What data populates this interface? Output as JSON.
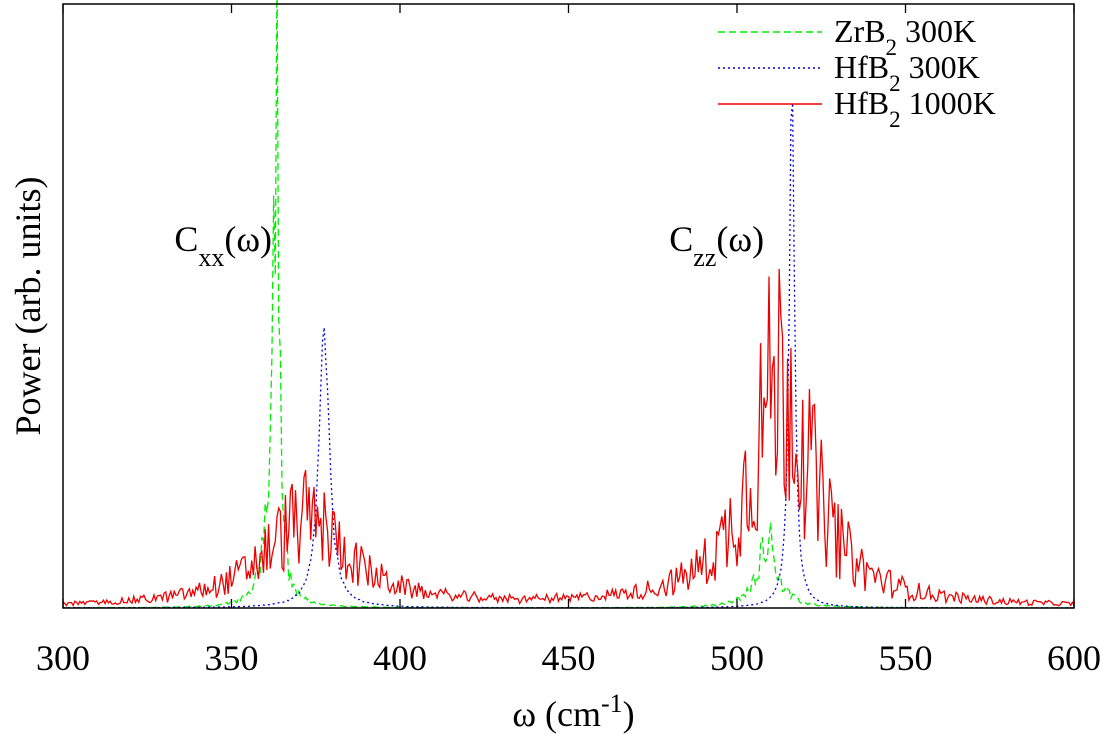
{
  "chart_data": {
    "type": "line",
    "xlabel_base": "ω (cm",
    "xlabel_sup": "-1",
    "xlabel_end": ")",
    "ylabel": "Power (arb. units)",
    "xlim": [
      300,
      600
    ],
    "ylim": [
      0,
      1.3
    ],
    "x_ticks": [
      300,
      350,
      400,
      450,
      500,
      550,
      600
    ],
    "x_tick_labels": [
      "300",
      "350",
      "400",
      "450",
      "500",
      "550",
      "600"
    ],
    "y_ticks_labeled": false,
    "grid": false,
    "legend_position": "top-right",
    "legend": [
      {
        "pre": "ZrB",
        "sub": "2",
        "post": " 300K",
        "color": "#00ee00",
        "dash": "7,4"
      },
      {
        "pre": "HfB",
        "sub": "2",
        "post": " 300K",
        "color": "#0000dd",
        "dash": "2,3"
      },
      {
        "pre": "HfB",
        "sub": "2",
        "post": " 1000K",
        "color": "#ee0000",
        "dash": ""
      }
    ],
    "annotations": [
      {
        "pre": "C",
        "sub": "xx",
        "post": "(ω)",
        "x": 365,
        "y": 0.79
      },
      {
        "pre": "C",
        "sub": "zz",
        "post": "(ω)",
        "x": 511,
        "y": 0.79
      }
    ],
    "series": [
      {
        "color": "#00ee00",
        "style": "dashed",
        "peaks": [
          {
            "center": 363.3,
            "width": 0.9,
            "height": 1.18,
            "jitter": 0.4
          },
          {
            "center": 361.0,
            "width": 2.2,
            "height": 0.16,
            "jitter": 0.3
          },
          {
            "center": 509.0,
            "width": 3.2,
            "height": 0.155,
            "jitter": 0.35
          }
        ]
      },
      {
        "color": "#0000dd",
        "style": "dotted",
        "peaks": [
          {
            "center": 377.5,
            "width": 1.8,
            "height": 0.6,
            "jitter": 0.08
          },
          {
            "center": 516.3,
            "width": 0.9,
            "height": 1.18,
            "jitter": 0.05
          }
        ]
      },
      {
        "color": "#ee0000",
        "style": "solid",
        "peaks": [
          {
            "center": 372.0,
            "width": 15.0,
            "height": 0.19,
            "jitter": 0.55
          },
          {
            "center": 513.0,
            "width": 11.0,
            "height": 0.5,
            "jitter": 0.6
          }
        ]
      }
    ]
  }
}
